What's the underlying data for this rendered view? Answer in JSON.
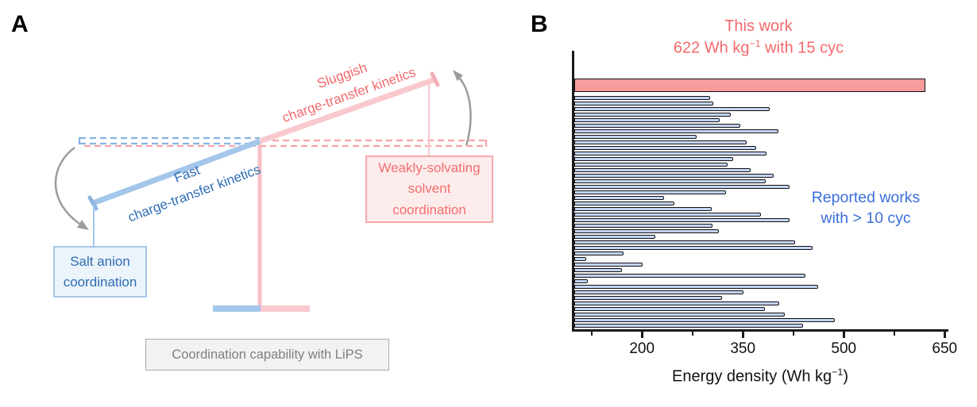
{
  "panel_a": {
    "label": "A",
    "fast_label_line1": "Fast",
    "fast_label_line2": "charge-transfer kinetics",
    "sluggish_label_line1": "Sluggish",
    "sluggish_label_line2": "charge-transfer kinetics",
    "salt_box_line1": "Salt anion",
    "salt_box_line2": "coordination",
    "weak_box_line1": "Weakly-solvating",
    "weak_box_line2": "solvent",
    "weak_box_line3": "coordination",
    "caption": "Coordination capability with LiPS",
    "colors": {
      "blue_beam": "#A3C6EA",
      "blue_text": "#2E6DB4",
      "pink_beam": "#F8C9CE",
      "red_text": "#F2696B",
      "gray": "#9C9C9C"
    }
  },
  "panel_b": {
    "label": "B",
    "title_line1": "This work",
    "title_line2_pre": "622 Wh kg",
    "title_line2_sup": "−1",
    "title_line2_post": " with 15 cyc",
    "note_line1": "Reported works",
    "note_line2": "with > 10 cyc",
    "xlabel_pre": "Energy density (Wh kg",
    "xlabel_sup": "−1",
    "xlabel_post": ")"
  },
  "chart_data": {
    "type": "bar",
    "orientation": "horizontal",
    "title": "This work 622 Wh kg⁻¹ with 15 cyc",
    "xlabel": "Energy density (Wh kg⁻¹)",
    "xlim": [
      100,
      655
    ],
    "x_major_ticks": [
      200,
      350,
      500,
      650
    ],
    "x_minor_ticks": [
      125,
      275,
      425,
      575
    ],
    "grid": false,
    "legend_position": "none",
    "series": [
      {
        "name": "This work (622 Wh kg⁻¹ with 15 cyc)",
        "color": "#F89B9D",
        "values": [
          622
        ]
      },
      {
        "name": "Reported works with > 10 cyc",
        "color": "#C3D4F5",
        "values": [
          302,
          307,
          390,
          333,
          316,
          347,
          404,
          282,
          356,
          371,
          386,
          336,
          328,
          362,
          396,
          384,
          420,
          326,
          233,
          249,
          304,
          378,
          420,
          306,
          315,
          220,
          428,
          454,
          173,
          118,
          202,
          171,
          444,
          120,
          462,
          352,
          320,
          405,
          383,
          413,
          487,
          440
        ]
      }
    ]
  }
}
